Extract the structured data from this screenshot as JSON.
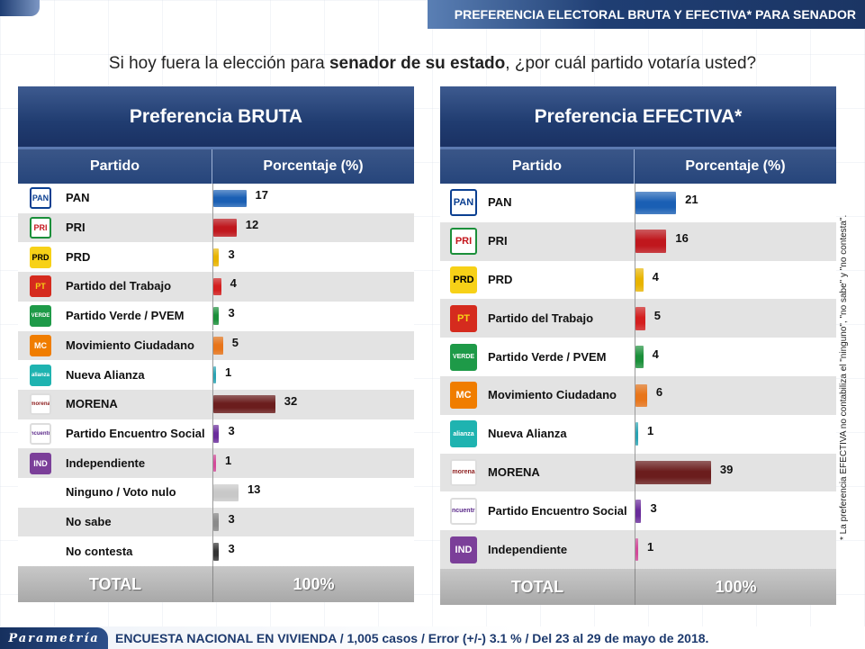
{
  "header": {
    "title": "PREFERENCIA ELECTORAL BRUTA Y EFECTIVA* PARA SENADOR",
    "question_pre": "Si hoy fuera la elección para ",
    "question_bold": "senador de su estado",
    "question_post": ", ¿por cuál partido votaría usted?"
  },
  "footer": {
    "brand": "Parametría",
    "text": "ENCUESTA NACIONAL EN VIVIENDA / 1,005 casos / Error (+/-) 3.1 % / Del 23 al 29 de mayo de 2018."
  },
  "side_note": "* La preferencia EFECTIVA no contabiliza el \"ninguno\", \"no sabe\" y \"no contesta\".",
  "logos": {
    "PAN": {
      "label": "PAN",
      "bg": "#ffffff",
      "fg": "#0b3f91",
      "border": "#0b3f91"
    },
    "PRI": {
      "label": "PRI",
      "bg": "#ffffff",
      "fg": "#c4161c",
      "border": "#1b8f3a"
    },
    "PRD": {
      "label": "PRD",
      "bg": "#f7d117",
      "fg": "#000000",
      "border": "#f7d117"
    },
    "PT": {
      "label": "PT",
      "bg": "#d52b1e",
      "fg": "#f7d117",
      "border": "#d52b1e"
    },
    "VERDE": {
      "label": "VERDE",
      "bg": "#1e9a48",
      "fg": "#ffffff",
      "border": "#1e9a48"
    },
    "MC": {
      "label": "MC",
      "bg": "#f07d00",
      "fg": "#ffffff",
      "border": "#f07d00"
    },
    "NA": {
      "label": "alianza",
      "bg": "#1fb3b0",
      "fg": "#ffffff",
      "border": "#1fb3b0"
    },
    "MORENA": {
      "label": "morena",
      "bg": "#ffffff",
      "fg": "#8c1c1c",
      "border": "#dddddd"
    },
    "PES": {
      "label": "encuentro",
      "bg": "#ffffff",
      "fg": "#5b2a8a",
      "border": "#dddddd"
    },
    "IND": {
      "label": "IND",
      "bg": "#7b3f99",
      "fg": "#ffffff",
      "border": "#7b3f99"
    }
  },
  "chart_data": [
    {
      "type": "bar",
      "title": "Preferencia BRUTA",
      "col_party": "Partido",
      "col_pct": "Porcentaje (%)",
      "total_label": "TOTAL",
      "total_value": "100%",
      "categories": [
        "PAN",
        "PRI",
        "PRD",
        "Partido del Trabajo",
        "Partido Verde / PVEM",
        "Movimiento Ciudadano",
        "Nueva Alianza",
        "MORENA",
        "Partido Encuentro Social",
        "Independiente",
        "Ninguno / Voto nulo",
        "No sabe",
        "No contesta"
      ],
      "logo_keys": [
        "PAN",
        "PRI",
        "PRD",
        "PT",
        "VERDE",
        "MC",
        "NA",
        "MORENA",
        "PES",
        "IND",
        "",
        "",
        ""
      ],
      "values": [
        17,
        12,
        3,
        4,
        3,
        5,
        1,
        32,
        3,
        1,
        13,
        3,
        3
      ],
      "colors": [
        "#1a5fb4",
        "#c0171d",
        "#e8b400",
        "#d41f1f",
        "#1b8f3a",
        "#e8751a",
        "#2aa3b3",
        "#6b1d1d",
        "#6a2c9b",
        "#d44a9a",
        "#c8c8c8",
        "#8a8a8a",
        "#333333"
      ]
    },
    {
      "type": "bar",
      "title": "Preferencia EFECTIVA*",
      "col_party": "Partido",
      "col_pct": "Porcentaje (%)",
      "total_label": "TOTAL",
      "total_value": "100%",
      "categories": [
        "PAN",
        "PRI",
        "PRD",
        "Partido del Trabajo",
        "Partido Verde / PVEM",
        "Movimiento Ciudadano",
        "Nueva Alianza",
        "MORENA",
        "Partido Encuentro Social",
        "Independiente"
      ],
      "logo_keys": [
        "PAN",
        "PRI",
        "PRD",
        "PT",
        "VERDE",
        "MC",
        "NA",
        "MORENA",
        "PES",
        "IND"
      ],
      "values": [
        21,
        16,
        4,
        5,
        4,
        6,
        1,
        39,
        3,
        1
      ],
      "colors": [
        "#1a5fb4",
        "#c0171d",
        "#e8b400",
        "#d41f1f",
        "#1b8f3a",
        "#e8751a",
        "#2aa3b3",
        "#6b1d1d",
        "#6a2c9b",
        "#d44a9a"
      ]
    }
  ]
}
